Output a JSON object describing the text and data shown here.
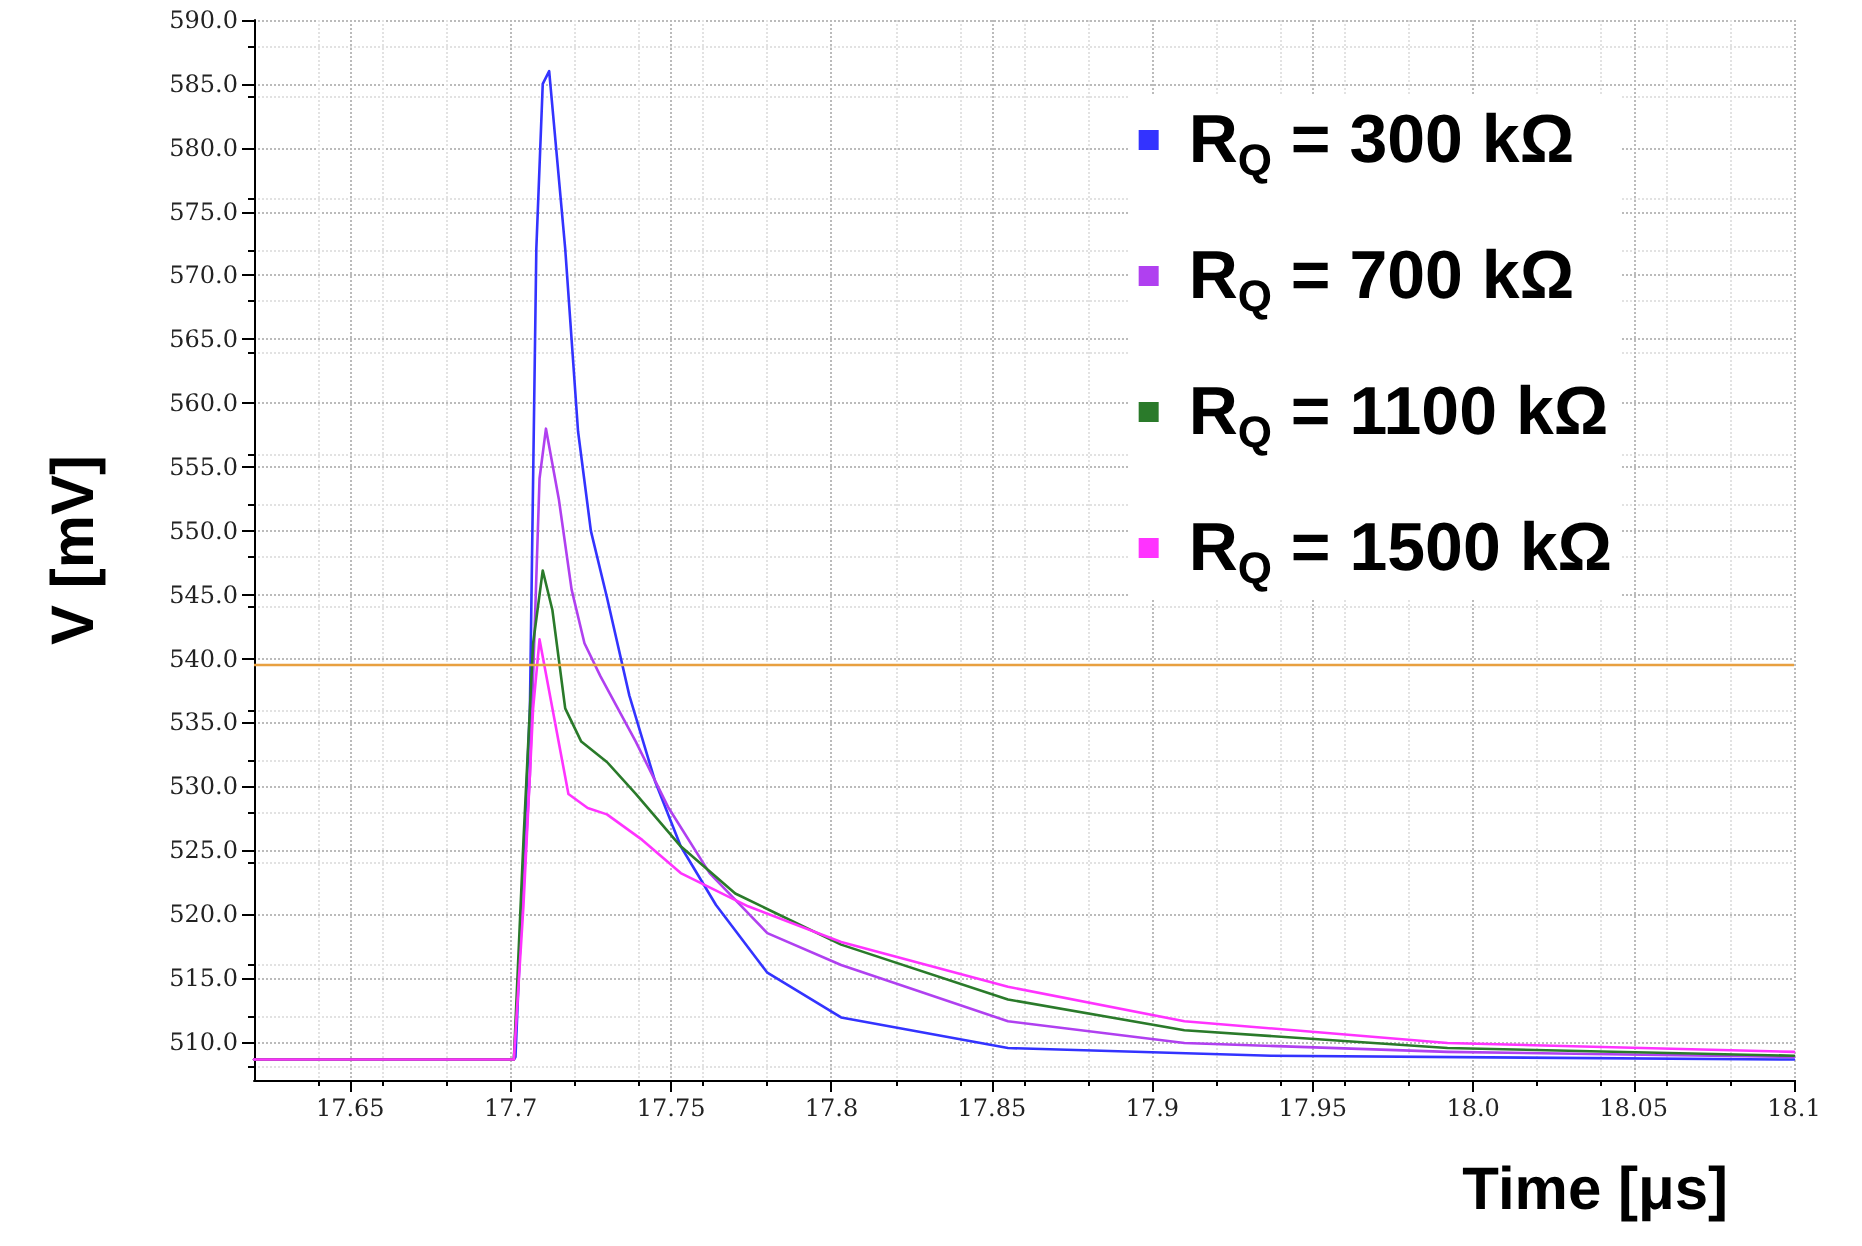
{
  "chart_data": {
    "type": "line",
    "xlabel": "Time [μs]",
    "ylabel": "V [mV]",
    "xlim": [
      17.62,
      18.1
    ],
    "xticks": [
      17.65,
      17.7,
      17.75,
      17.8,
      17.85,
      17.9,
      17.95,
      {
        "value": 18,
        "label": "18.0"
      },
      18.05,
      18.1
    ],
    "ylim": [
      507,
      590
    ],
    "yticks": [
      {
        "value": 510,
        "label": "510.0"
      },
      {
        "value": 515,
        "label": "515.0"
      },
      {
        "value": 520,
        "label": "520.0"
      },
      {
        "value": 525,
        "label": "525.0"
      },
      {
        "value": 530,
        "label": "530.0"
      },
      {
        "value": 535,
        "label": "535.0"
      },
      {
        "value": 540,
        "label": "540.0"
      },
      {
        "value": 545,
        "label": "545.0"
      },
      {
        "value": 550,
        "label": "550.0"
      },
      {
        "value": 555,
        "label": "555.0"
      },
      {
        "value": 560,
        "label": "560.0"
      },
      {
        "value": 565,
        "label": "565.0"
      },
      {
        "value": 570,
        "label": "570.0"
      },
      {
        "value": 575,
        "label": "575.0"
      },
      {
        "value": 580,
        "label": "580.0"
      },
      {
        "value": 585,
        "label": "585.0"
      },
      {
        "value": 590,
        "label": "590.0"
      }
    ],
    "grid": true,
    "legend": "top right",
    "marker": "none",
    "line_style": "solid",
    "ref_lines": [
      {
        "axis": "y",
        "value": 539.5,
        "color": "#e8a040"
      }
    ],
    "series": [
      {
        "name": "R$_{Q}$ = 300 kΩ",
        "color": "#3333ff",
        "x": [
          17.62,
          17.701,
          17.7015,
          17.706,
          17.708,
          17.71,
          17.712,
          17.717,
          17.721,
          17.725,
          17.73,
          17.737,
          17.745,
          17.753,
          17.764,
          17.78,
          17.803,
          17.855,
          17.937,
          18.1
        ],
        "values": [
          508.6,
          508.6,
          508.8,
          536.1,
          572.1,
          585.0,
          586.0,
          572.1,
          557.8,
          550.0,
          544.8,
          537.1,
          530.4,
          525.3,
          520.7,
          515.4,
          511.9,
          509.5,
          508.9,
          508.6
        ]
      },
      {
        "name": "R$_{Q}$ = 700 kΩ",
        "color": "#b040f0",
        "x": [
          17.62,
          17.701,
          17.706,
          17.709,
          17.711,
          17.715,
          17.719,
          17.723,
          17.728,
          17.739,
          17.749,
          17.762,
          17.78,
          17.803,
          17.855,
          17.91,
          17.992,
          18.1
        ],
        "values": [
          508.6,
          508.6,
          530.9,
          554.1,
          558.0,
          552.5,
          545.4,
          541.2,
          538.6,
          533.5,
          528.4,
          523.2,
          518.5,
          516.0,
          511.6,
          509.9,
          509.2,
          508.8
        ]
      },
      {
        "name": "R$_{Q}$ = 1100 kΩ",
        "color": "#2a7a2a",
        "x": [
          17.62,
          17.701,
          17.704,
          17.707,
          17.71,
          17.713,
          17.717,
          17.722,
          17.73,
          17.739,
          17.753,
          17.77,
          17.803,
          17.855,
          17.91,
          17.992,
          18.1
        ],
        "values": [
          508.6,
          508.6,
          525.8,
          541.2,
          546.9,
          543.8,
          536.1,
          533.5,
          531.9,
          529.4,
          525.3,
          521.6,
          517.6,
          513.3,
          510.9,
          509.5,
          508.9
        ]
      },
      {
        "name": "R$_{Q}$ = 1500 kΩ",
        "color": "#ff33ff",
        "x": [
          17.62,
          17.701,
          17.704,
          17.707,
          17.709,
          17.713,
          17.718,
          17.724,
          17.73,
          17.741,
          17.753,
          17.774,
          17.803,
          17.855,
          17.91,
          17.992,
          18.1
        ],
        "values": [
          508.6,
          508.6,
          520.7,
          536.1,
          541.5,
          536.1,
          529.4,
          528.3,
          527.8,
          525.8,
          523.2,
          520.6,
          517.8,
          514.3,
          511.6,
          509.9,
          509.2
        ]
      }
    ]
  }
}
